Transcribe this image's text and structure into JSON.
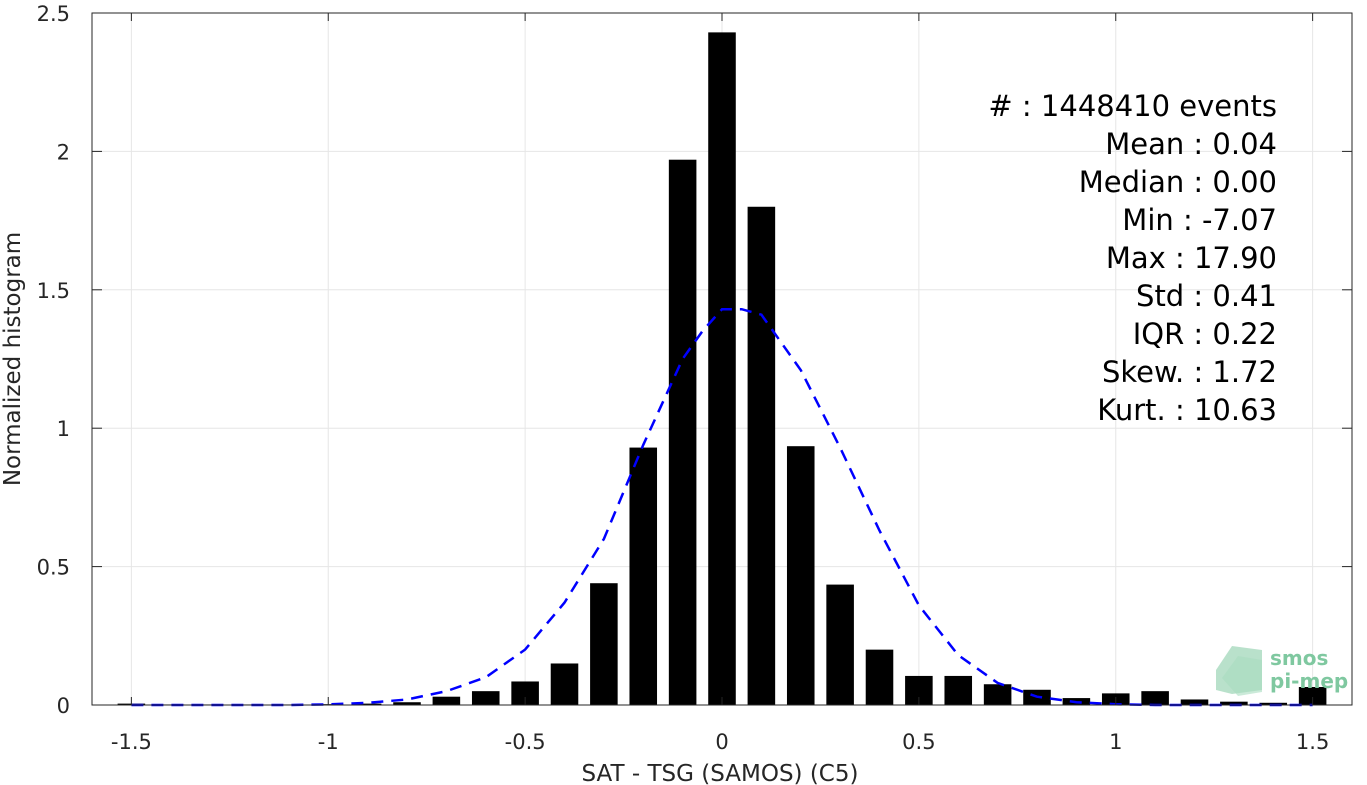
{
  "chart_data": {
    "type": "bar",
    "xlabel": "SAT - TSG (SAMOS) (C5)",
    "ylabel": "Normalized histogram",
    "xlim": [
      -1.6,
      1.6
    ],
    "ylim": [
      0,
      2.5
    ],
    "xticks": [
      -1.5,
      -1,
      -0.5,
      0,
      0.5,
      1,
      1.5
    ],
    "xtick_labels": [
      "-1.5",
      "-1",
      "-0.5",
      "0",
      "0.5",
      "1",
      "1.5"
    ],
    "yticks": [
      0,
      0.5,
      1,
      1.5,
      2,
      2.5
    ],
    "ytick_labels": [
      "0",
      "0.5",
      "1",
      "1.5",
      "2",
      "2.5"
    ],
    "grid": true,
    "bar_color": "#000000",
    "bars": {
      "x": [
        -1.5,
        -1.4,
        -1.3,
        -1.2,
        -1.1,
        -1.0,
        -0.9,
        -0.8,
        -0.7,
        -0.6,
        -0.5,
        -0.4,
        -0.3,
        -0.2,
        -0.1,
        0.0,
        0.1,
        0.2,
        0.3,
        0.4,
        0.5,
        0.6,
        0.7,
        0.8,
        0.9,
        1.0,
        1.1,
        1.2,
        1.3,
        1.4,
        1.5
      ],
      "values": [
        0.005,
        0.002,
        0.002,
        0.002,
        0.002,
        0.003,
        0.005,
        0.01,
        0.03,
        0.05,
        0.085,
        0.15,
        0.44,
        0.93,
        1.97,
        2.43,
        1.8,
        0.935,
        0.435,
        0.2,
        0.105,
        0.105,
        0.075,
        0.055,
        0.025,
        0.042,
        0.05,
        0.02,
        0.012,
        0.008,
        0.065
      ],
      "width": 0.07
    },
    "fit_line": {
      "style": "dashed",
      "color": "#0000ff",
      "x": [
        -1.5,
        -1.4,
        -1.3,
        -1.2,
        -1.1,
        -1.0,
        -0.9,
        -0.8,
        -0.7,
        -0.6,
        -0.5,
        -0.4,
        -0.3,
        -0.2,
        -0.1,
        -0.05,
        0.0,
        0.05,
        0.1,
        0.2,
        0.3,
        0.4,
        0.5,
        0.6,
        0.7,
        0.8,
        0.9,
        1.0,
        1.1,
        1.2,
        1.3,
        1.4,
        1.5
      ],
      "y": [
        0.0,
        0.0,
        0.0,
        0.0,
        0.0,
        0.002,
        0.008,
        0.02,
        0.05,
        0.1,
        0.2,
        0.37,
        0.6,
        0.94,
        1.25,
        1.35,
        1.43,
        1.43,
        1.41,
        1.21,
        0.93,
        0.63,
        0.36,
        0.18,
        0.08,
        0.03,
        0.01,
        0.003,
        0.0,
        0.0,
        0.0,
        0.0,
        0.0
      ]
    },
    "annotations": [
      {
        "id": "count",
        "text": "#  : 1448410 events"
      },
      {
        "id": "mean",
        "text": "Mean : 0.04"
      },
      {
        "id": "median",
        "text": "Median : 0.00"
      },
      {
        "id": "min",
        "text": "Min : -7.07"
      },
      {
        "id": "max",
        "text": "Max : 17.90"
      },
      {
        "id": "std",
        "text": "Std : 0.41"
      },
      {
        "id": "iqr",
        "text": "IQR : 0.22"
      },
      {
        "id": "skew",
        "text": "Skew. : 1.72"
      },
      {
        "id": "kurt",
        "text": "Kurt. : 10.63"
      }
    ]
  },
  "logo": {
    "line1": "smos",
    "line2": "pi-mep",
    "color": "#7fc8a0"
  }
}
